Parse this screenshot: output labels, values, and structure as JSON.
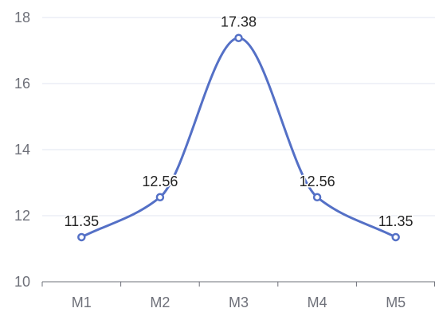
{
  "chart_data": {
    "type": "line",
    "smooth": true,
    "categories": [
      "M1",
      "M2",
      "M3",
      "M4",
      "M5"
    ],
    "series": [
      {
        "values": [
          11.35,
          12.56,
          17.38,
          12.56,
          11.35
        ],
        "color": "#5470c6"
      }
    ],
    "data_labels": [
      "11.35",
      "12.56",
      "17.38",
      "12.56",
      "11.35"
    ],
    "y_ticks": [
      10,
      12,
      14,
      16,
      18
    ],
    "y_tick_labels": [
      "10",
      "12",
      "14",
      "16",
      "18"
    ],
    "ylim": [
      10,
      18
    ],
    "grid": true,
    "grid_color": "#e0e6f1",
    "axis_color": "#6e7079"
  }
}
